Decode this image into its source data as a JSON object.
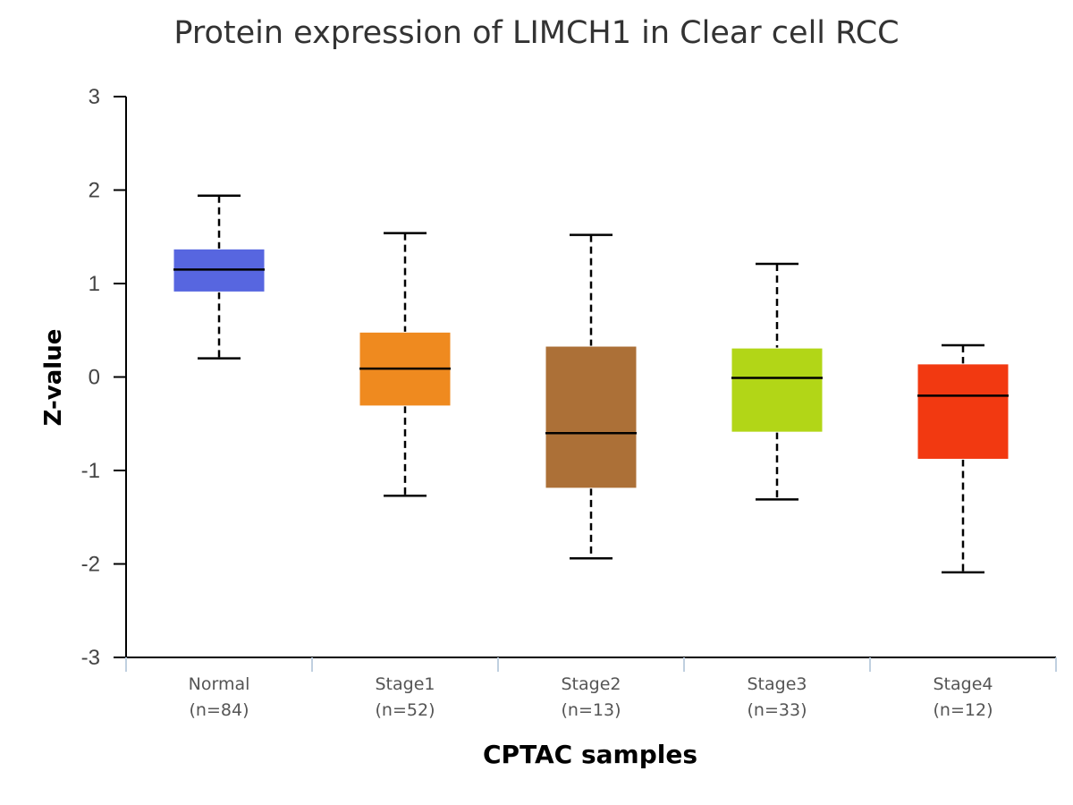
{
  "chart_data": {
    "type": "box",
    "title": "Protein expression of LIMCH1 in Clear cell RCC",
    "xlabel": "CPTAC samples",
    "ylabel": "Z-value",
    "ylim": [
      -3,
      3
    ],
    "yticks": [
      3,
      2,
      1,
      0,
      -1,
      -2,
      -3
    ],
    "ytick_labels": [
      "3",
      "2",
      "1",
      "0",
      "-1",
      "-2",
      "-3"
    ],
    "grid": false,
    "legend": "none",
    "categories": [
      {
        "label": "Normal",
        "n_label": "(n=84)",
        "color": "#5766e0",
        "whisker_low": 0.2,
        "q1": 0.91,
        "median": 1.15,
        "q3": 1.37,
        "whisker_high": 1.94
      },
      {
        "label": "Stage1",
        "n_label": "(n=52)",
        "color": "#ef8a1f",
        "whisker_low": -1.27,
        "q1": -0.31,
        "median": 0.09,
        "q3": 0.48,
        "whisker_high": 1.54
      },
      {
        "label": "Stage2",
        "n_label": "(n=13)",
        "color": "#ac7037",
        "whisker_low": -1.94,
        "q1": -1.19,
        "median": -0.6,
        "q3": 0.33,
        "whisker_high": 1.52
      },
      {
        "label": "Stage3",
        "n_label": "(n=33)",
        "color": "#b2d617",
        "whisker_low": -1.31,
        "q1": -0.59,
        "median": -0.01,
        "q3": 0.31,
        "whisker_high": 1.21
      },
      {
        "label": "Stage4",
        "n_label": "(n=12)",
        "color": "#f23911",
        "whisker_low": -2.09,
        "q1": -0.88,
        "median": -0.2,
        "q3": 0.14,
        "whisker_high": 0.34
      }
    ]
  }
}
